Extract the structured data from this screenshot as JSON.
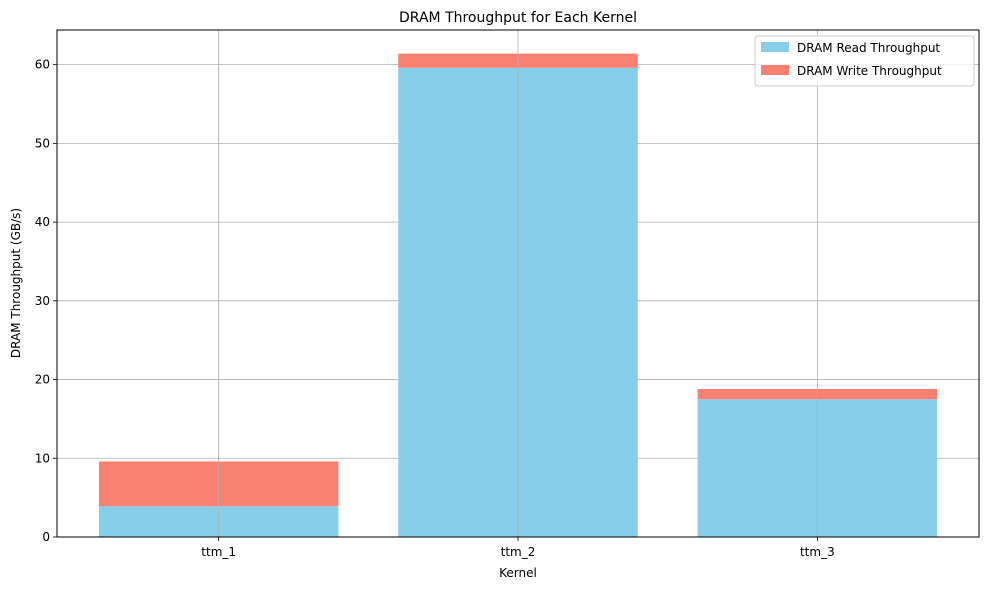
{
  "chart_data": {
    "type": "bar",
    "stacked": true,
    "title": "DRAM Throughput for Each Kernel",
    "xlabel": "Kernel",
    "ylabel": "DRAM Throughput (GB/s)",
    "categories": [
      "ttm_1",
      "ttm_2",
      "ttm_3"
    ],
    "series": [
      {
        "name": "DRAM Read Throughput",
        "color": "#87ceeb",
        "values": [
          3.9,
          59.6,
          17.5
        ]
      },
      {
        "name": "DRAM Write Throughput",
        "color": "#fa8072",
        "values": [
          5.7,
          1.8,
          1.3
        ]
      }
    ],
    "ylim": [
      0,
      64.4
    ],
    "yticks": [
      0,
      10,
      20,
      30,
      40,
      50,
      60
    ],
    "grid": true,
    "legend_position": "top-right"
  }
}
